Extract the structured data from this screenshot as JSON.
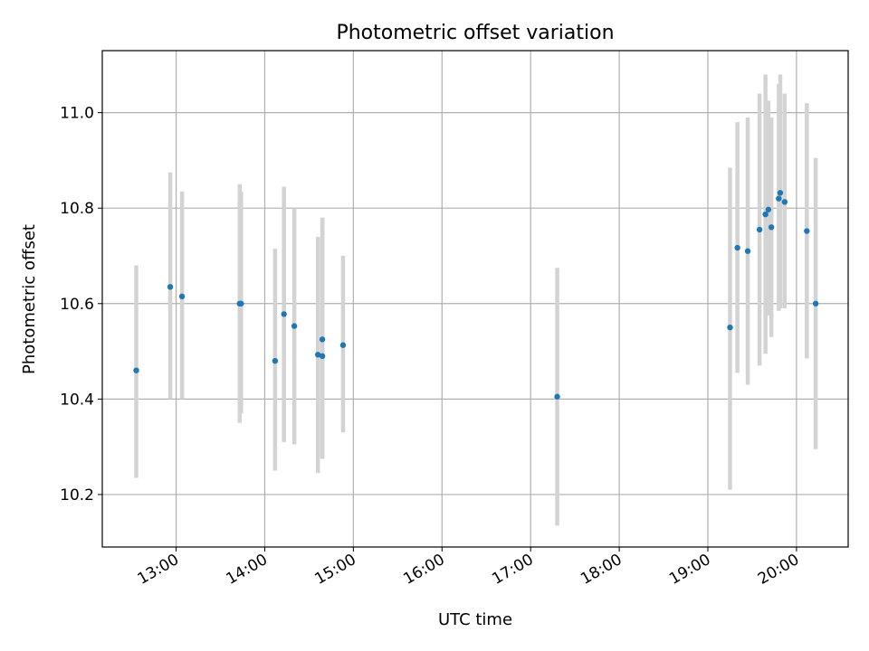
{
  "chart_data": {
    "type": "scatter",
    "title": "Photometric offset variation",
    "xlabel": "UTC time",
    "ylabel": "Photometric offset",
    "grid": true,
    "xlim": [
      "12:10",
      "20:35"
    ],
    "ylim": [
      10.09,
      11.13
    ],
    "x_ticks": [
      "13:00",
      "14:00",
      "15:00",
      "16:00",
      "17:00",
      "18:00",
      "19:00",
      "20:00"
    ],
    "y_ticks": [
      "10.2",
      "10.4",
      "10.6",
      "10.8",
      "11.0"
    ],
    "point_color": "#1f77b4",
    "errorbar_color": "#d3d3d3",
    "points": [
      {
        "x": "12:33",
        "y": 10.46,
        "ylow": 10.235,
        "yhigh": 10.68
      },
      {
        "x": "12:56",
        "y": 10.635,
        "ylow": 10.4,
        "yhigh": 10.875
      },
      {
        "x": "13:04",
        "y": 10.615,
        "ylow": 10.4,
        "yhigh": 10.835
      },
      {
        "x": "13:43",
        "y": 10.6,
        "ylow": 10.35,
        "yhigh": 10.85
      },
      {
        "x": "13:44",
        "y": 10.6,
        "ylow": 10.37,
        "yhigh": 10.835
      },
      {
        "x": "14:07",
        "y": 10.48,
        "ylow": 10.25,
        "yhigh": 10.715
      },
      {
        "x": "14:13",
        "y": 10.578,
        "ylow": 10.31,
        "yhigh": 10.845
      },
      {
        "x": "14:20",
        "y": 10.553,
        "ylow": 10.305,
        "yhigh": 10.8
      },
      {
        "x": "14:36",
        "y": 10.493,
        "ylow": 10.245,
        "yhigh": 10.74
      },
      {
        "x": "14:39",
        "y": 10.49,
        "ylow": 10.275,
        "yhigh": 10.78
      },
      {
        "x": "14:39",
        "y": 10.525,
        "ylow": 10.275,
        "yhigh": 10.78
      },
      {
        "x": "14:53",
        "y": 10.513,
        "ylow": 10.33,
        "yhigh": 10.7
      },
      {
        "x": "17:18",
        "y": 10.405,
        "ylow": 10.135,
        "yhigh": 10.675
      },
      {
        "x": "19:15",
        "y": 10.55,
        "ylow": 10.21,
        "yhigh": 10.885
      },
      {
        "x": "19:20",
        "y": 10.717,
        "ylow": 10.455,
        "yhigh": 10.98
      },
      {
        "x": "19:27",
        "y": 10.71,
        "ylow": 10.43,
        "yhigh": 10.99
      },
      {
        "x": "19:35",
        "y": 10.755,
        "ylow": 10.47,
        "yhigh": 11.04
      },
      {
        "x": "19:39",
        "y": 10.787,
        "ylow": 10.495,
        "yhigh": 11.08
      },
      {
        "x": "19:41",
        "y": 10.797,
        "ylow": 10.575,
        "yhigh": 11.025
      },
      {
        "x": "19:43",
        "y": 10.76,
        "ylow": 10.53,
        "yhigh": 10.99
      },
      {
        "x": "19:48",
        "y": 10.82,
        "ylow": 10.585,
        "yhigh": 11.06
      },
      {
        "x": "19:49",
        "y": 10.832,
        "ylow": 10.59,
        "yhigh": 11.08
      },
      {
        "x": "19:52",
        "y": 10.813,
        "ylow": 10.59,
        "yhigh": 11.04
      },
      {
        "x": "20:07",
        "y": 10.752,
        "ylow": 10.485,
        "yhigh": 11.02
      },
      {
        "x": "20:13",
        "y": 10.6,
        "ylow": 10.295,
        "yhigh": 10.905
      }
    ]
  }
}
